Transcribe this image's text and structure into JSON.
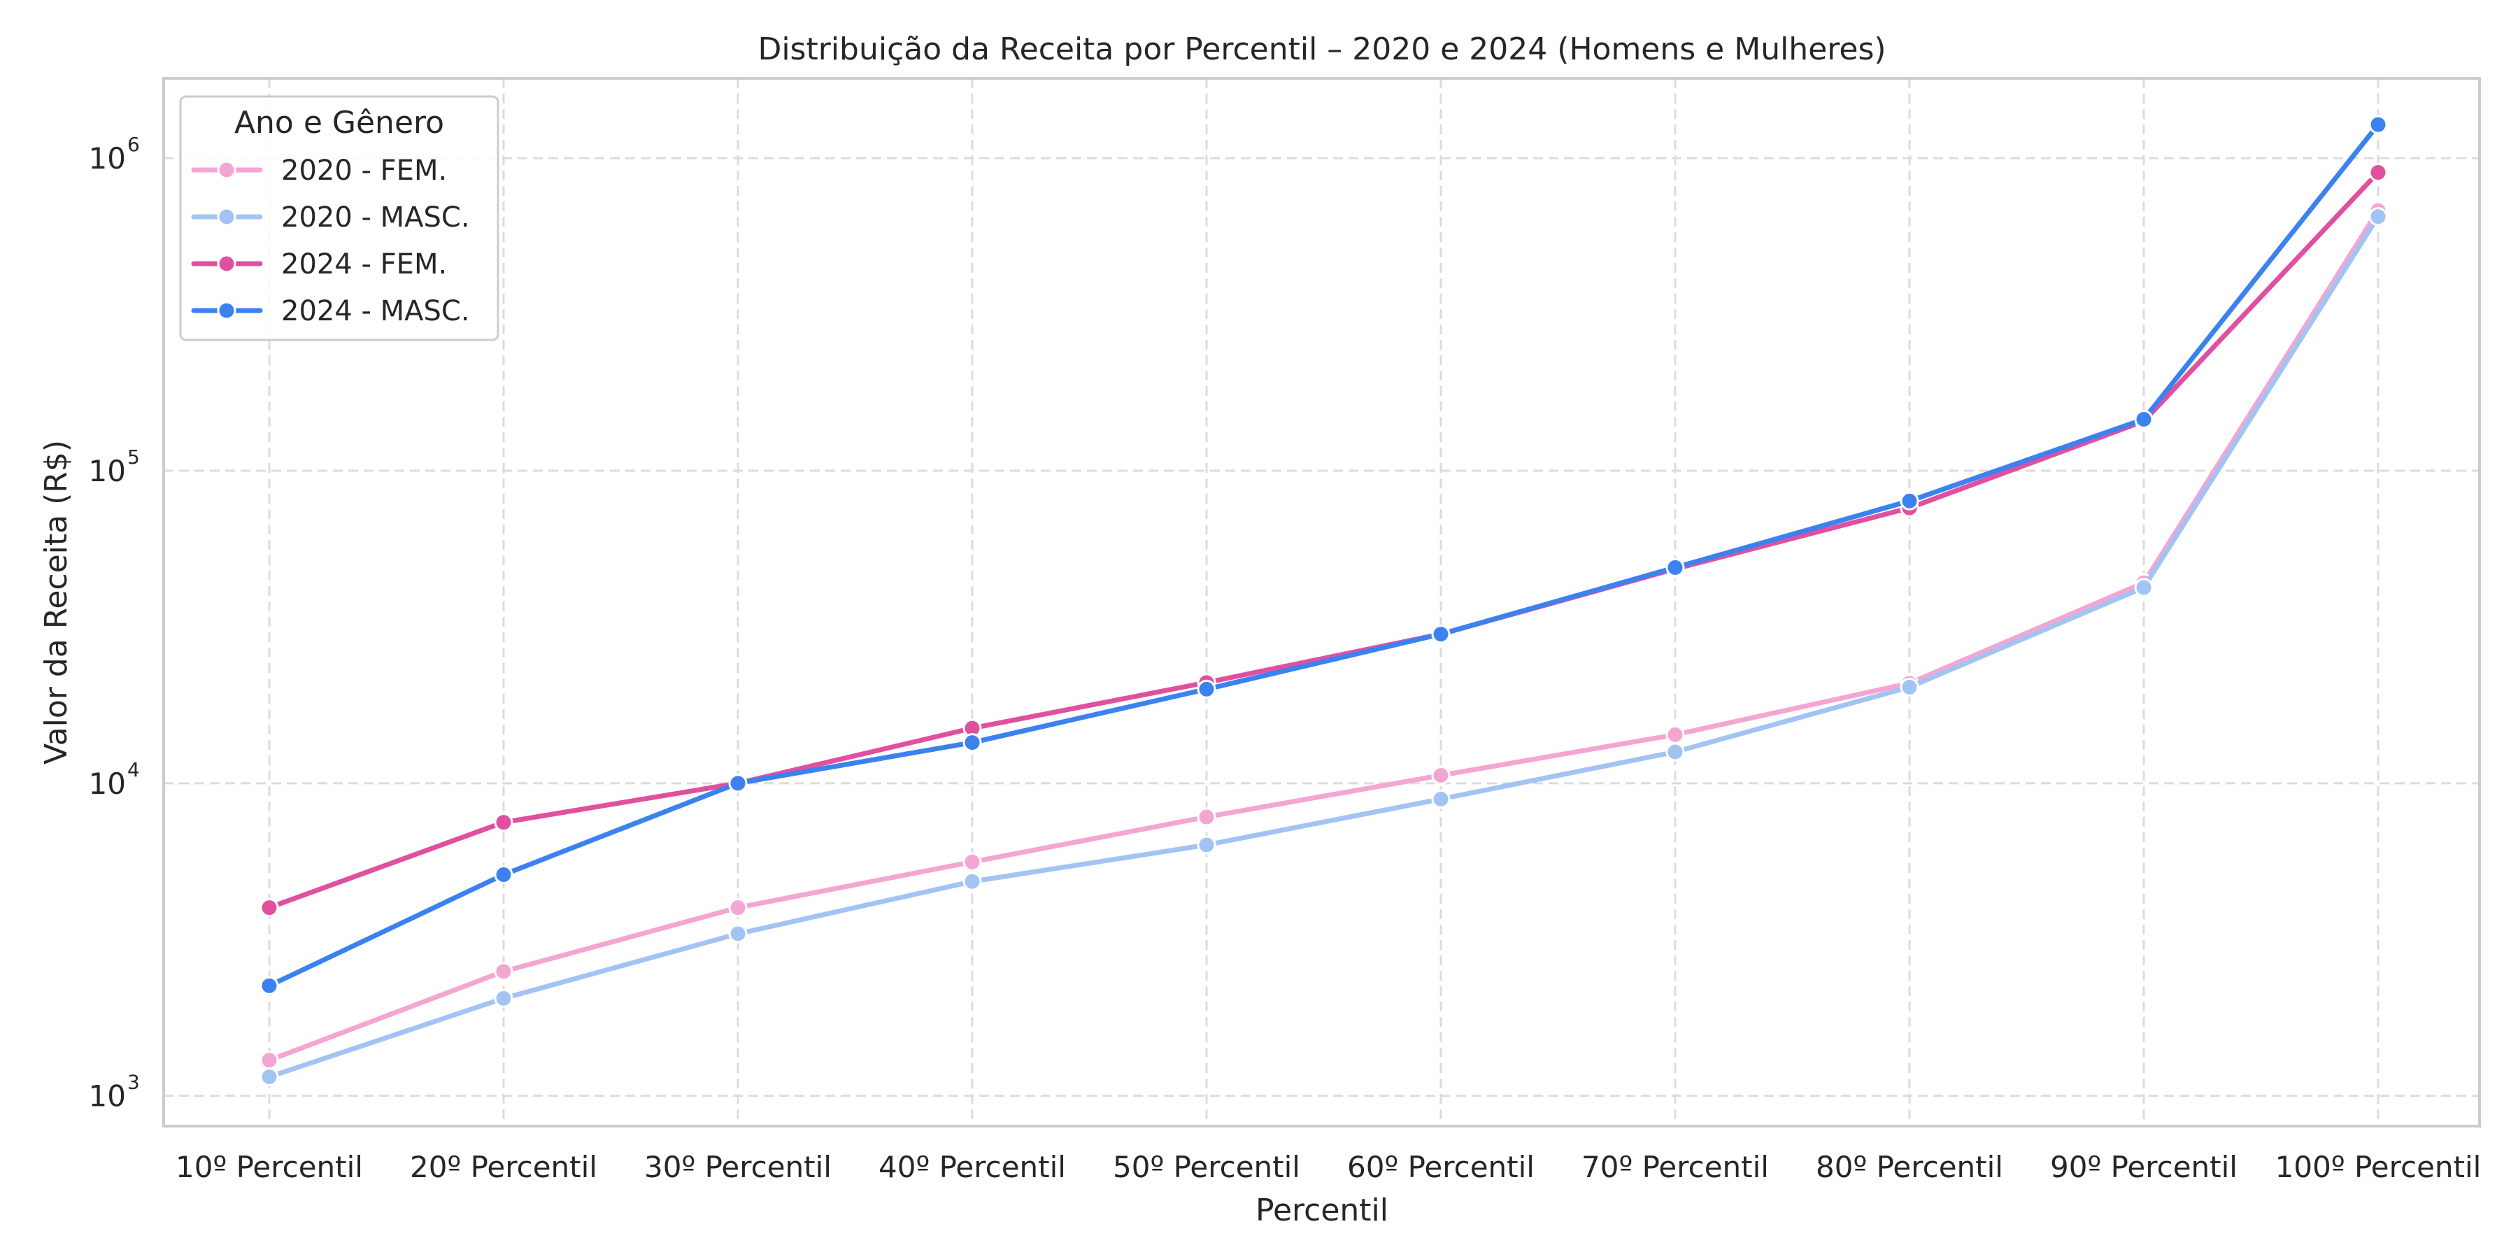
{
  "chart_data": {
    "type": "line",
    "title": "Distribuição da Receita por Percentil – 2020 e 2024 (Homens e Mulheres)",
    "xlabel": "Percentil",
    "ylabel": "Valor da Receita (R$)",
    "yscale": "log",
    "ylim": [
      800,
      1800000
    ],
    "yticks": [
      {
        "value": 1000,
        "base": "10",
        "exp": "3"
      },
      {
        "value": 10000,
        "base": "10",
        "exp": "4"
      },
      {
        "value": 100000,
        "base": "10",
        "exp": "5"
      },
      {
        "value": 1000000,
        "base": "10",
        "exp": "6"
      }
    ],
    "grid": true,
    "legend": {
      "title": "Ano e Gênero",
      "position": "upper-left"
    },
    "categories": [
      "10º Percentil",
      "20º Percentil",
      "30º Percentil",
      "40º Percentil",
      "50º Percentil",
      "60º Percentil",
      "70º Percentil",
      "80º Percentil",
      "90º Percentil",
      "100º Percentil"
    ],
    "series": [
      {
        "name": "2020 - FEM.",
        "color": "#f4a6d3",
        "values": [
          1300,
          2500,
          4000,
          5600,
          7800,
          10600,
          14300,
          20900,
          43800,
          680000
        ]
      },
      {
        "name": "2020 - MASC.",
        "color": "#a3c4f3",
        "values": [
          1150,
          2050,
          3300,
          4850,
          6350,
          8900,
          12600,
          20300,
          42300,
          650000
        ]
      },
      {
        "name": "2024 - FEM.",
        "color": "#e0509f",
        "values": [
          4000,
          7500,
          10000,
          15000,
          21000,
          30000,
          48500,
          76000,
          144000,
          900000
        ]
      },
      {
        "name": "2024 - MASC.",
        "color": "#3b82f0",
        "values": [
          2250,
          5100,
          10000,
          13500,
          20000,
          30000,
          49000,
          80000,
          146000,
          1280000
        ]
      }
    ]
  }
}
